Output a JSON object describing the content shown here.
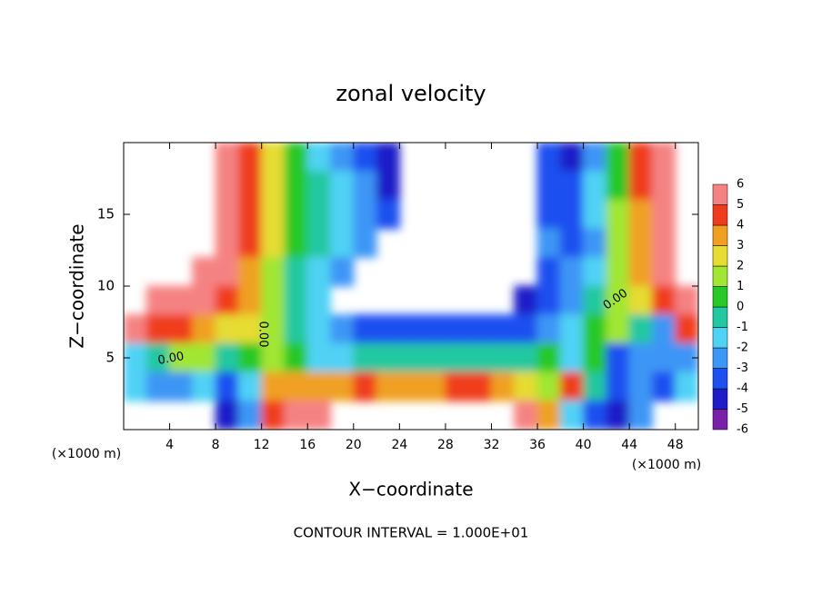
{
  "chart_data": {
    "type": "contour",
    "title": "zonal velocity",
    "xlabel": "X−coordinate",
    "ylabel": "Z−coordinate",
    "x_unit": "(×1000 m)",
    "y_unit": "(×1000 m)",
    "footer": "CONTOUR INTERVAL = 1.000E+01",
    "contour_labels": [
      "0.00",
      "0.00",
      "0.00"
    ],
    "xlim": [
      0,
      50
    ],
    "ylim": [
      0,
      20
    ],
    "xticks": [
      4,
      8,
      12,
      16,
      20,
      24,
      28,
      32,
      36,
      40,
      44,
      48
    ],
    "yticks": [
      5,
      10,
      15
    ],
    "x": [
      1,
      3,
      5,
      7,
      9,
      11,
      13,
      15,
      17,
      19,
      21,
      23,
      25,
      27,
      29,
      31,
      33,
      35,
      37,
      39,
      41,
      43,
      45,
      47,
      49
    ],
    "z": [
      19,
      17,
      15,
      13,
      11,
      9,
      7,
      5,
      3,
      1
    ],
    "values": [
      [
        null,
        null,
        null,
        null,
        5,
        4,
        2,
        0,
        -2,
        -3,
        -4,
        -5,
        null,
        null,
        null,
        null,
        null,
        null,
        -4,
        -5,
        -3,
        0,
        4,
        5,
        null
      ],
      [
        null,
        null,
        null,
        null,
        5,
        4,
        2,
        0,
        -1,
        -2,
        -3,
        -5,
        null,
        null,
        null,
        null,
        null,
        null,
        -4,
        -4,
        -2,
        0,
        4,
        5,
        null
      ],
      [
        null,
        null,
        null,
        null,
        5,
        4,
        2,
        0,
        -1,
        -2,
        -3,
        -4,
        null,
        null,
        null,
        null,
        null,
        null,
        -4,
        -4,
        -2,
        1,
        3,
        5,
        null
      ],
      [
        null,
        null,
        null,
        null,
        6,
        4,
        2,
        0,
        -1,
        -2,
        -3,
        null,
        null,
        null,
        null,
        null,
        null,
        null,
        -3,
        -4,
        -3,
        1,
        3,
        5,
        null
      ],
      [
        null,
        null,
        null,
        6,
        5,
        3,
        1,
        -1,
        -2,
        -3,
        null,
        null,
        null,
        null,
        null,
        null,
        null,
        null,
        -4,
        -3,
        -2,
        1,
        3,
        5,
        null
      ],
      [
        null,
        6,
        6,
        5,
        4,
        3,
        1,
        -1,
        -2,
        null,
        null,
        null,
        null,
        null,
        null,
        null,
        null,
        -5,
        -4,
        -3,
        -1,
        1,
        2,
        4,
        6
      ],
      [
        5,
        4,
        4,
        3,
        2,
        2,
        1,
        -1,
        -2,
        -3,
        -4,
        -4,
        -4,
        -4,
        -4,
        -4,
        -4,
        -4,
        -3,
        -2,
        0,
        1,
        -1,
        -3,
        4
      ],
      [
        -2,
        -1,
        1,
        1,
        -1,
        0,
        1,
        0,
        -2,
        -2,
        -1,
        -1,
        -1,
        -1,
        -1,
        -1,
        -1,
        -1,
        0,
        -2,
        0,
        -4,
        -3,
        -3,
        -3
      ],
      [
        -2,
        -3,
        -3,
        -2,
        -4,
        -2,
        3,
        3,
        3,
        3,
        4,
        3,
        3,
        3,
        4,
        4,
        3,
        2,
        1,
        4,
        -1,
        -4,
        -3,
        -4,
        -2
      ],
      [
        null,
        null,
        null,
        null,
        -5,
        -3,
        4,
        5,
        5,
        null,
        null,
        null,
        null,
        null,
        null,
        null,
        null,
        5,
        3,
        -2,
        -4,
        -5,
        -3,
        null,
        null
      ]
    ],
    "levels": [
      -6,
      -5,
      -4,
      -3,
      -2,
      -1,
      0,
      1,
      2,
      3,
      4,
      5,
      6
    ],
    "colors": [
      "#7a1fa8",
      "#1e1ec8",
      "#1e50f0",
      "#3c96f5",
      "#50d2f5",
      "#21c8a0",
      "#28c828",
      "#a0e632",
      "#e6dc32",
      "#f0a020",
      "#f03c1e",
      "#f58282"
    ]
  }
}
